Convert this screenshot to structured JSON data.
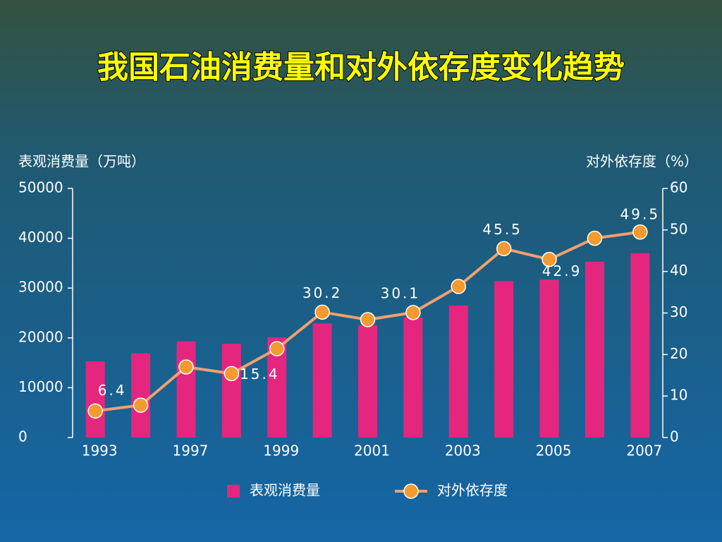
{
  "chart_data": {
    "type": "bar-line",
    "title": "我国石油消费量和对外依存度变化趋势",
    "y_label": "表观消费量（万吨）",
    "y2_label": "对外依存度（%）",
    "categories": [
      "1993",
      null,
      "1997",
      null,
      "1999",
      null,
      "2001",
      null,
      "2003",
      null,
      "2005",
      null,
      "2007"
    ],
    "series": [
      {
        "name": "表观消费量",
        "type": "bar",
        "color": "#e5267f",
        "values": [
          15300,
          16900,
          19300,
          18800,
          20100,
          22900,
          22500,
          24100,
          26500,
          31400,
          31700,
          35300,
          37000
        ]
      },
      {
        "name": "对外依存度",
        "type": "line",
        "axis": "y2",
        "color": "#f0a070",
        "marker_color": "#f59a30",
        "values": [
          6.4,
          7.8,
          17.0,
          15.4,
          21.4,
          30.2,
          28.4,
          30.1,
          36.4,
          45.5,
          42.9,
          48.0,
          49.5
        ],
        "value_labels": [
          "6.4",
          null,
          null,
          "15.4",
          null,
          "30.2",
          null,
          "30.1",
          null,
          "45.5",
          "42.9",
          null,
          "49.5"
        ]
      }
    ],
    "ylim": [
      0,
      50000
    ],
    "yticks": [
      0,
      10000,
      20000,
      30000,
      40000,
      50000
    ],
    "y2lim": [
      0,
      60
    ],
    "y2ticks": [
      0,
      10,
      20,
      30,
      40,
      50,
      60
    ],
    "grid": false
  }
}
